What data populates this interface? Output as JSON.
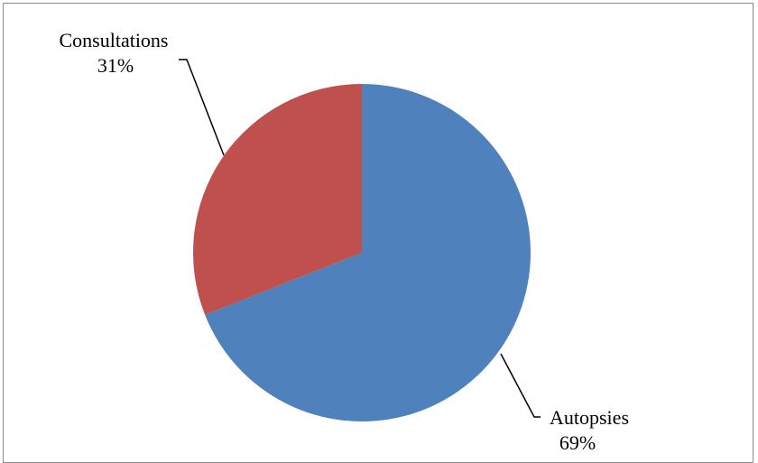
{
  "chart_data": {
    "type": "pie",
    "slices": [
      {
        "label": "Autopsies",
        "value": 69,
        "value_label": "69%",
        "color": "#4f81bd"
      },
      {
        "label": "Consultations",
        "value": 31,
        "value_label": "31%",
        "color": "#c0504d"
      }
    ],
    "start": "12 o'clock",
    "direction": "clockwise",
    "legend": "none"
  }
}
